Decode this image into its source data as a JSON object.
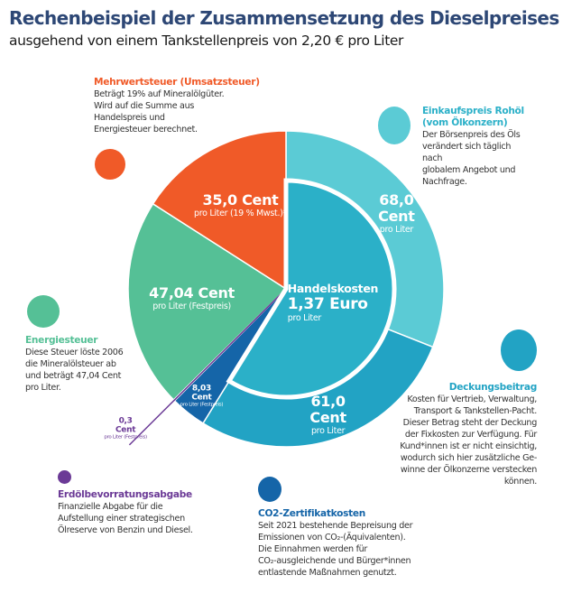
{
  "header": {
    "title": "Rechenbeispiel der Zusammensetzung des Dieselpreises",
    "subtitle": "ausgehend von einem Tankstellenpreis von 2,20 € pro Liter"
  },
  "chart_data": {
    "type": "pie",
    "unit": "Cent pro Liter",
    "total_label": "2,20 € pro Liter",
    "inner": {
      "title": "Handelskosten",
      "value": 137,
      "value_label": "1,37 Euro",
      "sub": "pro Liter",
      "color": "#2bb0c8"
    },
    "slices": [
      {
        "key": "rohoel",
        "value": 68.0,
        "value_label": "68,0 Cent",
        "sub": "pro Liter",
        "color": "#5bcbd5",
        "title": "Einkaufspreis Rohöl (vom Ölkonzern)",
        "desc": "Der Börsenpreis des Öls\nverändert sich täglich nach\nglobalem Angebot und\nNachfrage."
      },
      {
        "key": "deckung",
        "value": 61.0,
        "value_label": "61,0 Cent",
        "sub": "pro Liter",
        "color": "#22a3c4",
        "title": "Deckungsbeitrag",
        "desc": "Kosten für Vertrieb, Verwaltung,\nTransport & Tankstellen-Pacht.\nDieser Betrag steht der Deckung\nder Fixkosten zur Verfügung. Für\nKund*innen ist er nicht einsichtig,\nwodurch sich hier zusätzliche Ge-\nwinne der Ölkonzerne verstecken\nkönnen."
      },
      {
        "key": "co2",
        "value": 8.03,
        "value_label": "8,03 Cent",
        "sub": "pro Liter (Festpreis)",
        "color": "#1565a8",
        "title": "CO2-Zertifikatkosten",
        "desc": "Seit 2021 bestehende Bepreisung der\nEmissionen von CO₂-(Äquivalenten).\nDie Einnahmen werden für\nCO₂-ausgleichende und Bürger*innen\nentlastende Maßnahmen genutzt."
      },
      {
        "key": "erdoel",
        "value": 0.3,
        "value_label": "0,3 Cent",
        "sub": "pro Liter (Festpreis)",
        "color": "#6b3a96",
        "title": "Erdölbevorratungsabgabe",
        "desc": "Finanzielle Abgabe für die\nAufstellung einer strategischen\nÖlreserve von Benzin und Diesel."
      },
      {
        "key": "energie",
        "value": 47.04,
        "value_label": "47,04 Cent",
        "sub": "pro Liter (Festpreis)",
        "color": "#55c096",
        "title": "Energiesteuer",
        "desc": "Diese Steuer löste 2006\ndie Mineralölsteuer ab\nund beträgt 47,04 Cent\npro Liter."
      },
      {
        "key": "mwst",
        "value": 35.0,
        "value_label": "35,0 Cent",
        "sub": "pro Liter (19 % Mwst.)*",
        "color": "#f05a28",
        "title": "Mehrwertsteuer (Umsatzsteuer)",
        "desc": "Beträgt 19% auf Mineralölgüter.\nWird auf die Summe aus\nHandelspreis und\nEnergiesteuer berechnet."
      }
    ]
  }
}
